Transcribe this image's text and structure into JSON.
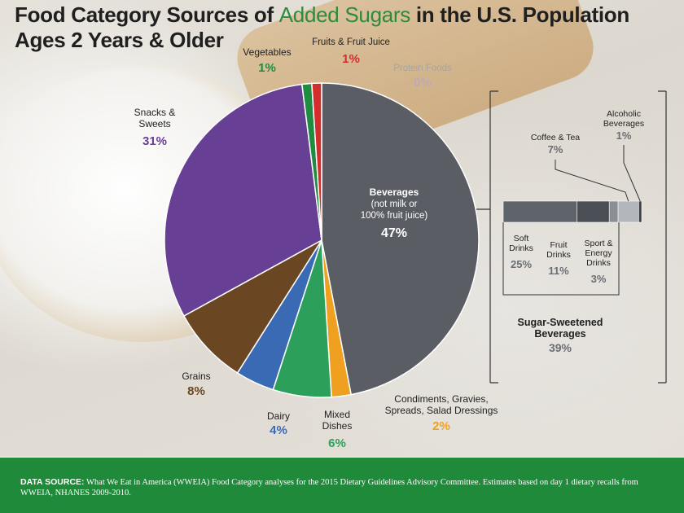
{
  "title": {
    "part1": "Food Category Sources of ",
    "accent": "Added Sugars",
    "part2": " in the U.S. Population",
    "line2": "Ages 2 Years & Older"
  },
  "colors": {
    "beverages": "#5a5e64",
    "condiments": "#f0a021",
    "mixed_dishes": "#2ca05a",
    "dairy": "#3b6ab4",
    "grains": "#6a4722",
    "snacks": "#673f94",
    "vegetables": "#1f8c42",
    "fruits": "#d42d2d",
    "protein": "#c0a8b8"
  },
  "chart_data": [
    {
      "type": "pie",
      "slices": [
        {
          "id": "beverages",
          "label_lines": [
            "Beverages",
            "(not milk or",
            "100% fruit juice)"
          ],
          "percent_label": "47%",
          "value": 47
        },
        {
          "id": "condiments",
          "label_lines": [
            "Condiments, Gravies,",
            "Spreads, Salad Dressings"
          ],
          "percent_label": "2%",
          "value": 2
        },
        {
          "id": "mixed_dishes",
          "label_lines": [
            "Mixed",
            "Dishes"
          ],
          "percent_label": "6%",
          "value": 6
        },
        {
          "id": "dairy",
          "label_lines": [
            "Dairy"
          ],
          "percent_label": "4%",
          "value": 4
        },
        {
          "id": "grains",
          "label_lines": [
            "Grains"
          ],
          "percent_label": "8%",
          "value": 8
        },
        {
          "id": "snacks",
          "label_lines": [
            "Snacks &",
            "Sweets"
          ],
          "percent_label": "31%",
          "value": 31
        },
        {
          "id": "vegetables",
          "label_lines": [
            "Vegetables"
          ],
          "percent_label": "1%",
          "value": 1
        },
        {
          "id": "fruits",
          "label_lines": [
            "Fruits & Fruit Juice"
          ],
          "percent_label": "1%",
          "value": 1
        },
        {
          "id": "protein",
          "label_lines": [
            "Protein Foods"
          ],
          "percent_label": "0%",
          "value": 0
        }
      ]
    },
    {
      "type": "bar",
      "orientation": "horizontal-stacked",
      "title_lines": [
        "Sugar-Sweetened",
        "Beverages"
      ],
      "total_label": "39%",
      "segments": [
        {
          "label_lines": [
            "Soft",
            "Drinks"
          ],
          "percent_label": "25%",
          "value": 25,
          "color": "#5f646b"
        },
        {
          "label_lines": [
            "Fruit",
            "Drinks"
          ],
          "percent_label": "11%",
          "value": 11,
          "color": "#4a4f55"
        },
        {
          "label_lines": [
            "Sport &",
            "Energy",
            "Drinks"
          ],
          "percent_label": "3%",
          "value": 3,
          "color": "#8a8f96"
        },
        {
          "label_lines": [
            "Coffee & Tea"
          ],
          "percent_label": "7%",
          "value": 7,
          "color": "#b3b6bb"
        },
        {
          "label_lines": [
            "Alcoholic",
            "Beverages"
          ],
          "percent_label": "1%",
          "value": 1,
          "color": "#3b3f44"
        }
      ]
    }
  ],
  "footer": {
    "label": "DATA SOURCE:",
    "text": " What We Eat in America (WWEIA) Food Category analyses for the 2015 Dietary Guidelines Advisory Committee. Estimates based on day 1 dietary recalls from WWEIA, NHANES 2009-2010."
  }
}
